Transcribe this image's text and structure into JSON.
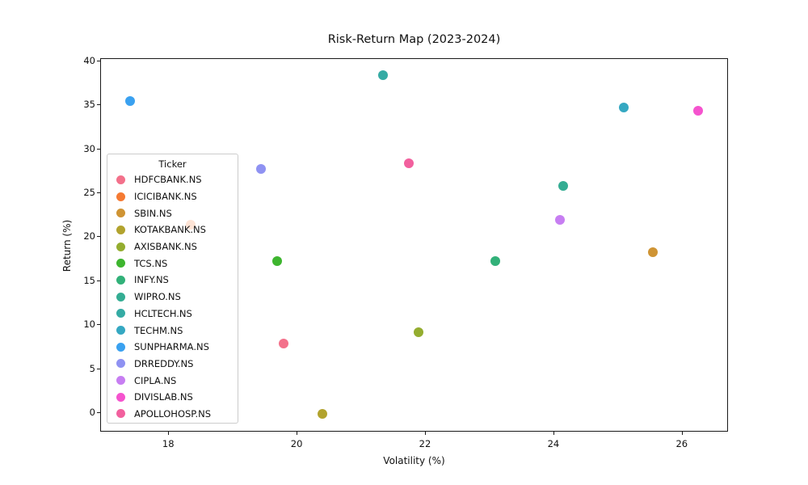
{
  "chart_data": {
    "type": "scatter",
    "title": "Risk-Return Map (2023-2024)",
    "xlabel": "Volatility (%)",
    "ylabel": "Return (%)",
    "xlim": [
      16.94,
      26.72
    ],
    "ylim": [
      -2.2,
      40.25
    ],
    "xticks": [
      18,
      20,
      22,
      24,
      26
    ],
    "yticks": [
      0,
      5,
      10,
      15,
      20,
      25,
      30,
      35,
      40
    ],
    "grid": true,
    "grid_style": "dashed",
    "legend_title": "Ticker",
    "legend_position": "inside-left",
    "marker_size_px": 12,
    "series": [
      {
        "name": "HDFCBANK.NS",
        "color": "#f3718b",
        "x": 19.8,
        "y": 7.8
      },
      {
        "name": "ICICIBANK.NS",
        "color": "#f57a33",
        "x": 18.35,
        "y": 21.3
      },
      {
        "name": "SBIN.NS",
        "color": "#cf9434",
        "x": 25.55,
        "y": 18.2
      },
      {
        "name": "KOTAKBANK.NS",
        "color": "#b2a32e",
        "x": 20.4,
        "y": -0.2
      },
      {
        "name": "AXISBANK.NS",
        "color": "#94ad2f",
        "x": 21.9,
        "y": 9.1
      },
      {
        "name": "TCS.NS",
        "color": "#3eb52f",
        "x": 19.7,
        "y": 17.2
      },
      {
        "name": "INFY.NS",
        "color": "#32b179",
        "x": 23.1,
        "y": 17.2
      },
      {
        "name": "WIPRO.NS",
        "color": "#34ad93",
        "x": 24.15,
        "y": 25.7
      },
      {
        "name": "HCLTECH.NS",
        "color": "#35aba4",
        "x": 21.35,
        "y": 38.3
      },
      {
        "name": "TECHM.NS",
        "color": "#35a8c2",
        "x": 25.1,
        "y": 34.6
      },
      {
        "name": "SUNPHARMA.NS",
        "color": "#3aa1f0",
        "x": 17.4,
        "y": 35.4
      },
      {
        "name": "DRREDDY.NS",
        "color": "#8f92f2",
        "x": 19.45,
        "y": 27.7
      },
      {
        "name": "CIPLA.NS",
        "color": "#c77ef2",
        "x": 24.1,
        "y": 21.9
      },
      {
        "name": "DIVISLAB.NS",
        "color": "#f553ce",
        "x": 26.25,
        "y": 34.3
      },
      {
        "name": "APOLLOHOSP.NS",
        "color": "#f2609e",
        "x": 21.75,
        "y": 28.3
      }
    ]
  }
}
